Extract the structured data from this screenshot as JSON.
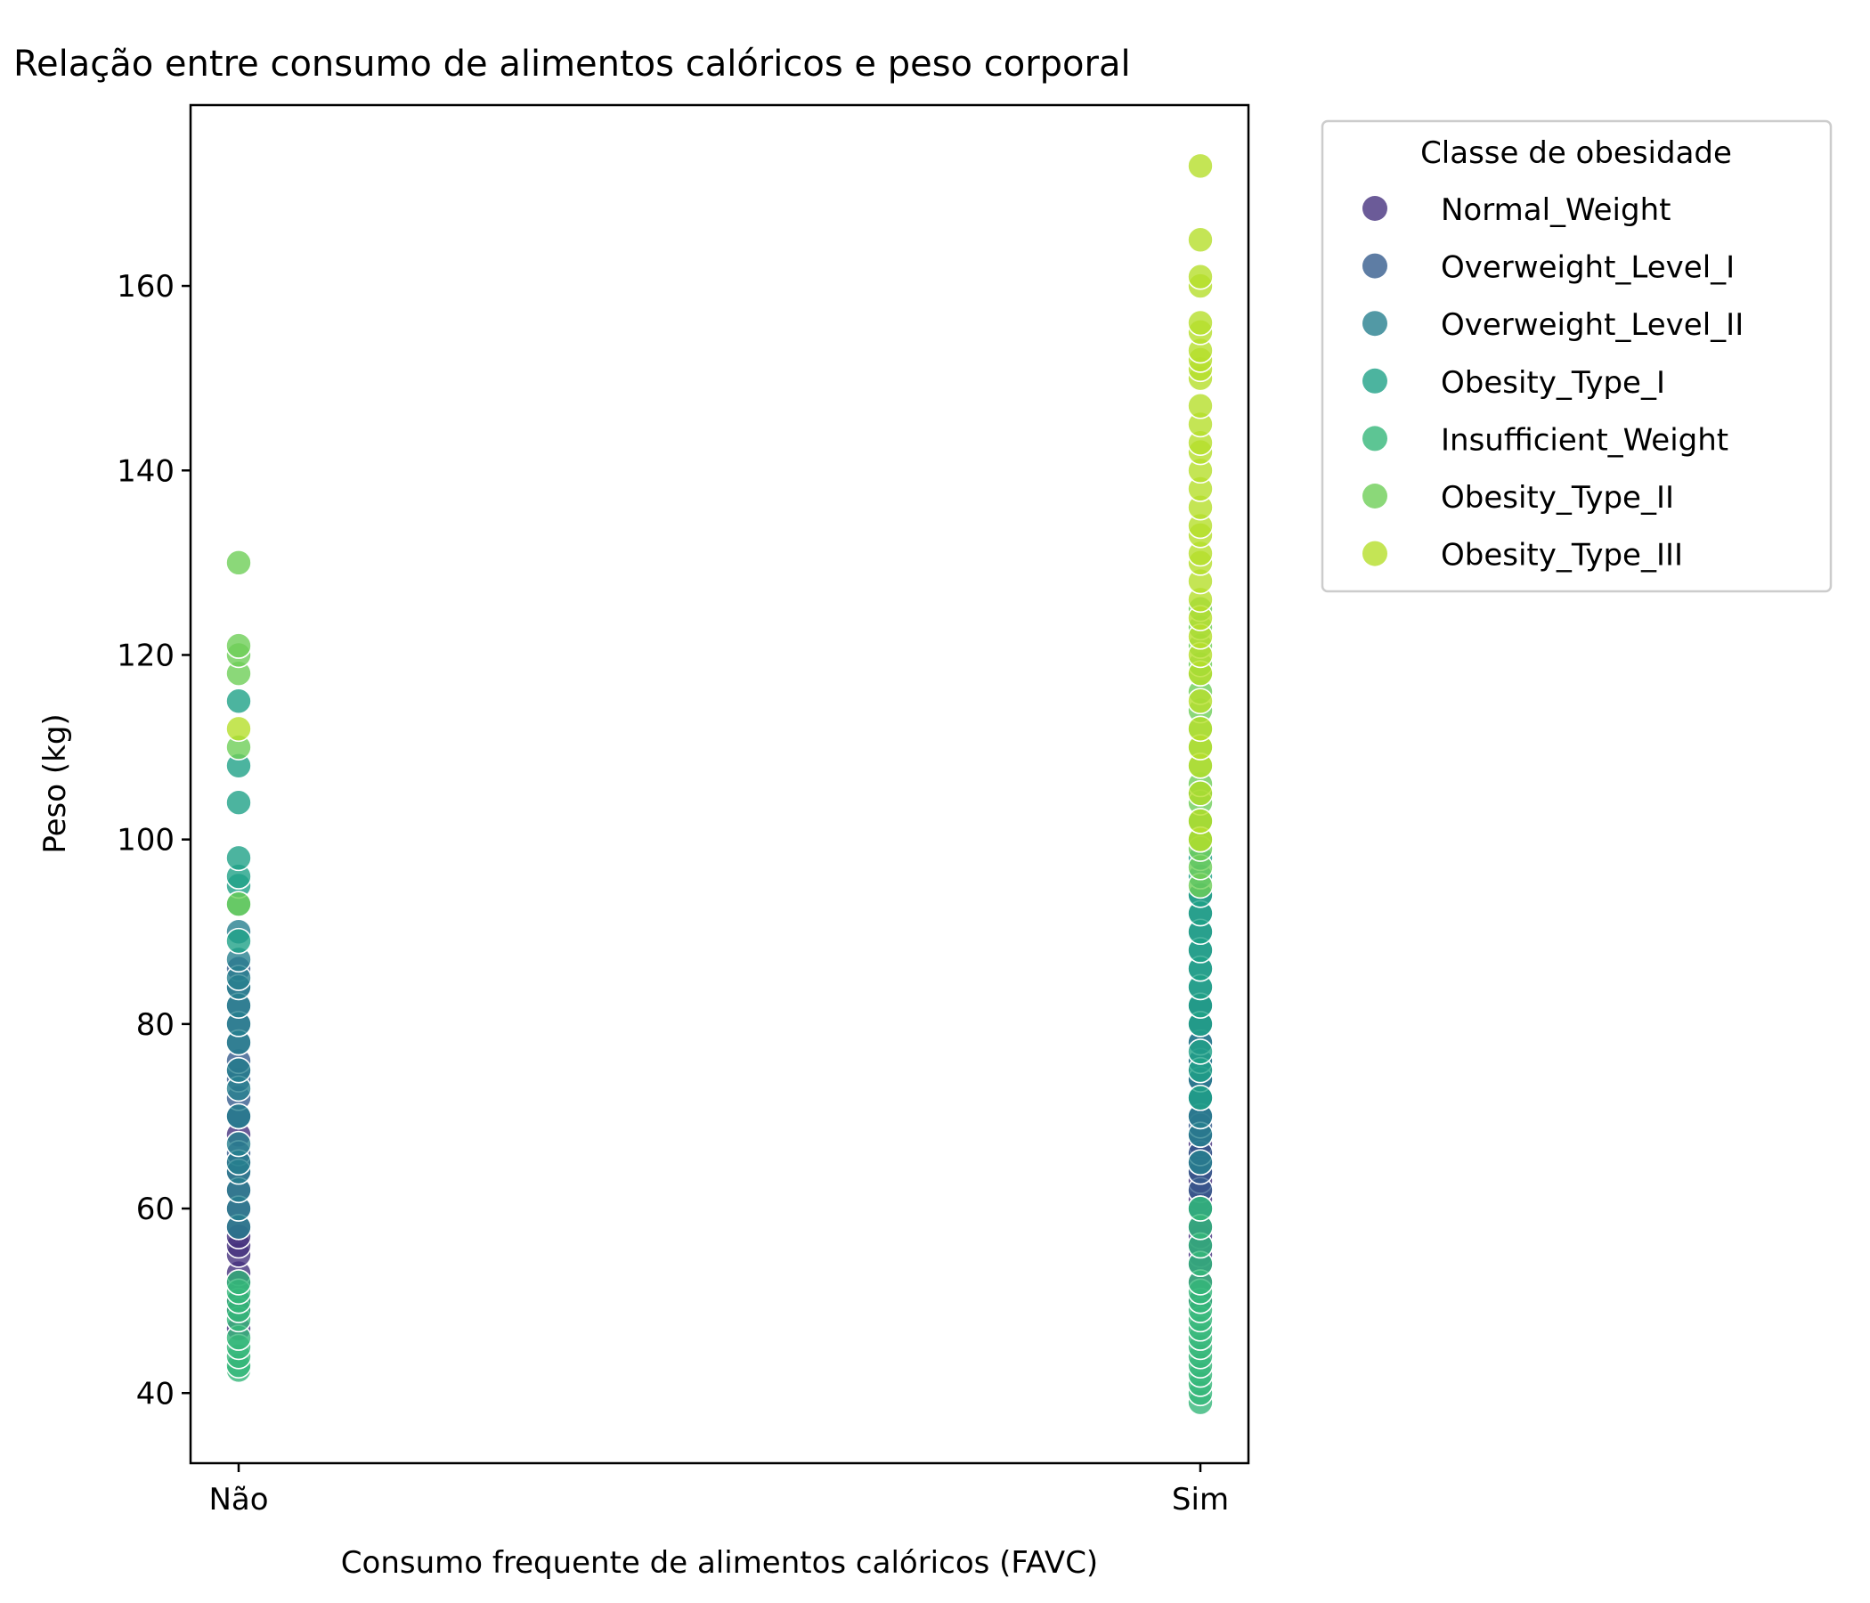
{
  "chart_data": {
    "type": "scatter",
    "title": "Relação entre consumo de alimentos calóricos e peso corporal",
    "xlabel": "Consumo frequente de alimentos calóricos (FAVC)",
    "ylabel": "Peso (kg)",
    "categories": [
      "Não",
      "Sim"
    ],
    "ylim": [
      32.4,
      179.6
    ],
    "yticks": [
      40,
      60,
      80,
      100,
      120,
      140,
      160
    ],
    "grid": false,
    "legend": {
      "title": "Classe de obesidade",
      "placement": "outside-top-right"
    },
    "series": [
      {
        "name": "Normal_Weight",
        "color": "#46327e",
        "points": [
          [
            "Não",
            47
          ],
          [
            "Não",
            49
          ],
          [
            "Não",
            50
          ],
          [
            "Não",
            52
          ],
          [
            "Não",
            53
          ],
          [
            "Não",
            55
          ],
          [
            "Não",
            56
          ],
          [
            "Não",
            57
          ],
          [
            "Não",
            58
          ],
          [
            "Não",
            60
          ],
          [
            "Não",
            62
          ],
          [
            "Não",
            64
          ],
          [
            "Não",
            65
          ],
          [
            "Não",
            68
          ],
          [
            "Não",
            70
          ],
          [
            "Sim",
            50
          ],
          [
            "Sim",
            52
          ],
          [
            "Sim",
            54
          ],
          [
            "Sim",
            55
          ],
          [
            "Sim",
            56
          ],
          [
            "Sim",
            57
          ],
          [
            "Sim",
            58
          ],
          [
            "Sim",
            60
          ],
          [
            "Sim",
            61
          ],
          [
            "Sim",
            62
          ],
          [
            "Sim",
            63
          ],
          [
            "Sim",
            64
          ],
          [
            "Sim",
            65
          ],
          [
            "Sim",
            66
          ],
          [
            "Sim",
            67
          ],
          [
            "Sim",
            68
          ],
          [
            "Sim",
            70
          ],
          [
            "Sim",
            72
          ],
          [
            "Sim",
            74
          ]
        ]
      },
      {
        "name": "Overweight_Level_I",
        "color": "#365c8d",
        "points": [
          [
            "Não",
            66
          ],
          [
            "Não",
            70
          ],
          [
            "Não",
            72
          ],
          [
            "Não",
            74
          ],
          [
            "Não",
            75
          ],
          [
            "Não",
            76
          ],
          [
            "Não",
            78
          ],
          [
            "Não",
            80
          ],
          [
            "Não",
            82
          ],
          [
            "Não",
            84
          ],
          [
            "Não",
            86
          ],
          [
            "Sim",
            54
          ],
          [
            "Sim",
            56
          ],
          [
            "Sim",
            58
          ],
          [
            "Sim",
            60
          ],
          [
            "Sim",
            62
          ],
          [
            "Sim",
            64
          ],
          [
            "Sim",
            65
          ],
          [
            "Sim",
            66
          ],
          [
            "Sim",
            68
          ],
          [
            "Sim",
            69
          ],
          [
            "Sim",
            70
          ],
          [
            "Sim",
            72
          ],
          [
            "Sim",
            74
          ],
          [
            "Sim",
            75
          ],
          [
            "Sim",
            76
          ],
          [
            "Sim",
            78
          ],
          [
            "Sim",
            80
          ],
          [
            "Sim",
            82
          ]
        ]
      },
      {
        "name": "Overweight_Level_II",
        "color": "#277f8e",
        "points": [
          [
            "Não",
            58
          ],
          [
            "Não",
            60
          ],
          [
            "Não",
            62
          ],
          [
            "Não",
            64
          ],
          [
            "Não",
            65
          ],
          [
            "Não",
            67
          ],
          [
            "Não",
            70
          ],
          [
            "Não",
            73
          ],
          [
            "Não",
            75
          ],
          [
            "Não",
            78
          ],
          [
            "Não",
            80
          ],
          [
            "Não",
            82
          ],
          [
            "Não",
            84
          ],
          [
            "Não",
            85
          ],
          [
            "Não",
            87
          ],
          [
            "Não",
            90
          ],
          [
            "Sim",
            60
          ],
          [
            "Sim",
            65
          ],
          [
            "Sim",
            68
          ],
          [
            "Sim",
            70
          ],
          [
            "Sim",
            72
          ],
          [
            "Sim",
            74
          ],
          [
            "Sim",
            76
          ],
          [
            "Sim",
            78
          ],
          [
            "Sim",
            80
          ],
          [
            "Sim",
            82
          ],
          [
            "Sim",
            84
          ],
          [
            "Sim",
            86
          ],
          [
            "Sim",
            88
          ],
          [
            "Sim",
            90
          ],
          [
            "Sim",
            92
          ],
          [
            "Sim",
            94
          ]
        ]
      },
      {
        "name": "Obesity_Type_I",
        "color": "#1fa187",
        "points": [
          [
            "Não",
            89
          ],
          [
            "Não",
            93
          ],
          [
            "Não",
            95
          ],
          [
            "Não",
            96
          ],
          [
            "Não",
            98
          ],
          [
            "Não",
            104
          ],
          [
            "Não",
            108
          ],
          [
            "Não",
            115
          ],
          [
            "Sim",
            72
          ],
          [
            "Sim",
            75
          ],
          [
            "Sim",
            77
          ],
          [
            "Sim",
            80
          ],
          [
            "Sim",
            82
          ],
          [
            "Sim",
            84
          ],
          [
            "Sim",
            86
          ],
          [
            "Sim",
            88
          ],
          [
            "Sim",
            90
          ],
          [
            "Sim",
            92
          ],
          [
            "Sim",
            94
          ],
          [
            "Sim",
            96
          ],
          [
            "Sim",
            98
          ],
          [
            "Sim",
            100
          ],
          [
            "Sim",
            102
          ],
          [
            "Sim",
            105
          ]
        ]
      },
      {
        "name": "Insufficient_Weight",
        "color": "#35b779",
        "points": [
          [
            "Não",
            42.5
          ],
          [
            "Não",
            43
          ],
          [
            "Não",
            44
          ],
          [
            "Não",
            45
          ],
          [
            "Não",
            46
          ],
          [
            "Não",
            48
          ],
          [
            "Não",
            49
          ],
          [
            "Não",
            50
          ],
          [
            "Não",
            51
          ],
          [
            "Não",
            52
          ],
          [
            "Sim",
            39
          ],
          [
            "Sim",
            40
          ],
          [
            "Sim",
            41
          ],
          [
            "Sim",
            42
          ],
          [
            "Sim",
            43
          ],
          [
            "Sim",
            44
          ],
          [
            "Sim",
            45
          ],
          [
            "Sim",
            46
          ],
          [
            "Sim",
            47
          ],
          [
            "Sim",
            48
          ],
          [
            "Sim",
            49
          ],
          [
            "Sim",
            50
          ],
          [
            "Sim",
            51
          ],
          [
            "Sim",
            52
          ],
          [
            "Sim",
            54
          ],
          [
            "Sim",
            56
          ],
          [
            "Sim",
            58
          ],
          [
            "Sim",
            60
          ]
        ]
      },
      {
        "name": "Obesity_Type_II",
        "color": "#6ece58",
        "points": [
          [
            "Não",
            93
          ],
          [
            "Não",
            110
          ],
          [
            "Não",
            118
          ],
          [
            "Não",
            120
          ],
          [
            "Não",
            121
          ],
          [
            "Não",
            130
          ],
          [
            "Sim",
            95
          ],
          [
            "Sim",
            97
          ],
          [
            "Sim",
            99
          ],
          [
            "Sim",
            100
          ],
          [
            "Sim",
            102
          ],
          [
            "Sim",
            104
          ],
          [
            "Sim",
            106
          ],
          [
            "Sim",
            108
          ],
          [
            "Sim",
            110
          ],
          [
            "Sim",
            112
          ],
          [
            "Sim",
            114
          ],
          [
            "Sim",
            116
          ],
          [
            "Sim",
            118
          ],
          [
            "Sim",
            119
          ],
          [
            "Sim",
            121
          ],
          [
            "Sim",
            123
          ],
          [
            "Sim",
            125
          ]
        ]
      },
      {
        "name": "Obesity_Type_III",
        "color": "#b5de2b",
        "points": [
          [
            "Não",
            112
          ],
          [
            "Sim",
            100
          ],
          [
            "Sim",
            102
          ],
          [
            "Sim",
            105
          ],
          [
            "Sim",
            108
          ],
          [
            "Sim",
            110
          ],
          [
            "Sim",
            112
          ],
          [
            "Sim",
            115
          ],
          [
            "Sim",
            118
          ],
          [
            "Sim",
            120
          ],
          [
            "Sim",
            122
          ],
          [
            "Sim",
            124
          ],
          [
            "Sim",
            126
          ],
          [
            "Sim",
            128
          ],
          [
            "Sim",
            130
          ],
          [
            "Sim",
            131
          ],
          [
            "Sim",
            133
          ],
          [
            "Sim",
            134
          ],
          [
            "Sim",
            136
          ],
          [
            "Sim",
            138
          ],
          [
            "Sim",
            140
          ],
          [
            "Sim",
            142
          ],
          [
            "Sim",
            143
          ],
          [
            "Sim",
            145
          ],
          [
            "Sim",
            147
          ],
          [
            "Sim",
            150
          ],
          [
            "Sim",
            151
          ],
          [
            "Sim",
            152
          ],
          [
            "Sim",
            153
          ],
          [
            "Sim",
            155
          ],
          [
            "Sim",
            156
          ],
          [
            "Sim",
            160
          ],
          [
            "Sim",
            161
          ],
          [
            "Sim",
            165
          ],
          [
            "Sim",
            173
          ]
        ]
      }
    ]
  }
}
